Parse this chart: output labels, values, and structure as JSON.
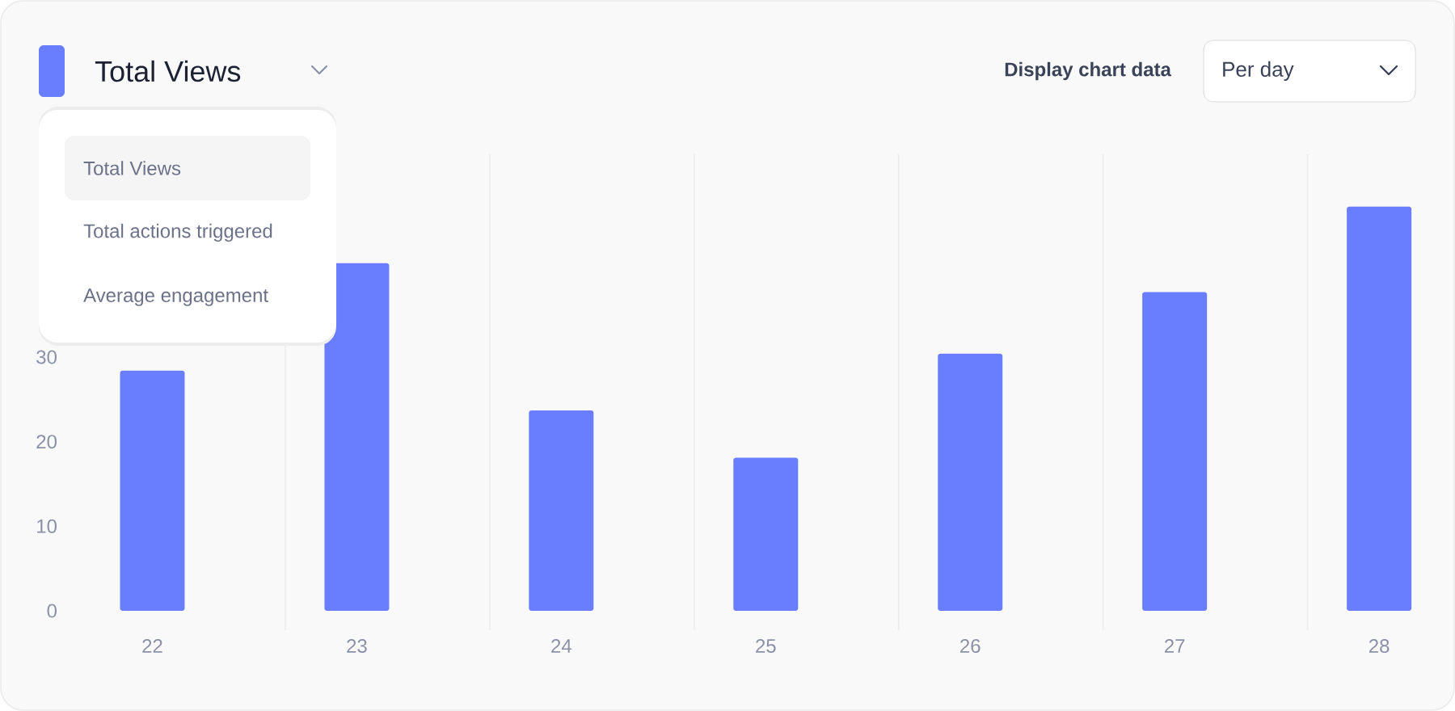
{
  "chart_data": {
    "type": "bar",
    "title": "Total Views",
    "categories": [
      "22",
      "23",
      "24",
      "25",
      "26",
      "27",
      "28"
    ],
    "values": [
      28.4,
      41.1,
      23.7,
      18.1,
      30.4,
      37.7,
      47.8
    ],
    "color": "#687eff",
    "ylim": [
      0,
      54
    ],
    "yticks": [
      0,
      10,
      20,
      30
    ],
    "grid": "x",
    "annotations": [
      "Display chart data",
      "Per day",
      "Total Views",
      "Total actions triggered",
      "Average engagement"
    ]
  }
}
